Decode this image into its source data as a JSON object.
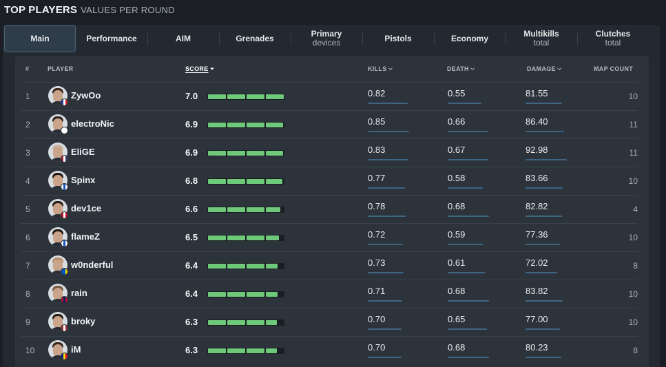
{
  "header": {
    "title": "TOP PLAYERS",
    "subtitle": "VALUES PER ROUND"
  },
  "tabs": [
    {
      "label": "Main",
      "sub": ""
    },
    {
      "label": "Performance",
      "sub": ""
    },
    {
      "label": "AIM",
      "sub": ""
    },
    {
      "label": "Grenades",
      "sub": ""
    },
    {
      "label": "Primary",
      "sub": "devices"
    },
    {
      "label": "Pistols",
      "sub": ""
    },
    {
      "label": "Economy",
      "sub": ""
    },
    {
      "label": "Multikills",
      "sub": "total"
    },
    {
      "label": "Clutches",
      "sub": "total"
    }
  ],
  "active_tab": "Main",
  "columns": {
    "num": "#",
    "player": "PLAYER",
    "score": "SCORE",
    "kills": "KILLS",
    "death": "DEATH",
    "damage": "DAMAGE",
    "maps": "MAP COUNT"
  },
  "sort": {
    "column": "score",
    "direction": "desc"
  },
  "score_max": 7.0,
  "colors": {
    "accent": "#6fc97a",
    "stat_line": "#3f6585",
    "active_tab": "#2f3d4a"
  },
  "players": [
    {
      "rank": "1",
      "name": "ZywOo",
      "score": "7.0",
      "kills": "0.82",
      "death": "0.55",
      "damage": "81.55",
      "maps": "10",
      "flag": [
        "#1f3fa0",
        "#ffffff",
        "#d62828"
      ],
      "hair": "#3b2a22"
    },
    {
      "rank": "2",
      "name": "electroNic",
      "score": "6.9",
      "kills": "0.85",
      "death": "0.66",
      "damage": "86.40",
      "maps": "11",
      "flag": [
        "#ffffff",
        "#ffffff",
        "#ffffff"
      ],
      "hair": "#2f2520"
    },
    {
      "rank": "3",
      "name": "EliGE",
      "score": "6.9",
      "kills": "0.83",
      "death": "0.67",
      "damage": "92.98",
      "maps": "11",
      "flag": [
        "#b22234",
        "#ffffff",
        "#3c3b6e"
      ],
      "hair": "#c9b8a8"
    },
    {
      "rank": "4",
      "name": "Spinx",
      "score": "6.8",
      "kills": "0.77",
      "death": "0.58",
      "damage": "83.66",
      "maps": "10",
      "flag": [
        "#ffffff",
        "#1c4fbf",
        "#ffffff"
      ],
      "hair": "#241b17"
    },
    {
      "rank": "5",
      "name": "dev1ce",
      "score": "6.6",
      "kills": "0.78",
      "death": "0.68",
      "damage": "82.82",
      "maps": "4",
      "flag": [
        "#c8102e",
        "#ffffff",
        "#c8102e"
      ],
      "hair": "#2a1f1a"
    },
    {
      "rank": "6",
      "name": "flameZ",
      "score": "6.5",
      "kills": "0.72",
      "death": "0.59",
      "damage": "77.36",
      "maps": "10",
      "flag": [
        "#ffffff",
        "#1c4fbf",
        "#ffffff"
      ],
      "hair": "#1f1a17"
    },
    {
      "rank": "7",
      "name": "w0nderful",
      "score": "6.4",
      "kills": "0.73",
      "death": "0.61",
      "damage": "72.02",
      "maps": "8",
      "flag": [
        "#0057b7",
        "#0057b7",
        "#ffd700"
      ],
      "hair": "#b88f6a"
    },
    {
      "rank": "8",
      "name": "rain",
      "score": "6.4",
      "kills": "0.71",
      "death": "0.68",
      "damage": "83.82",
      "maps": "10",
      "flag": [
        "#ba0c2f",
        "#00205b",
        "#ba0c2f"
      ],
      "hair": "#7a5a40"
    },
    {
      "rank": "9",
      "name": "broky",
      "score": "6.3",
      "kills": "0.70",
      "death": "0.65",
      "damage": "77.00",
      "maps": "10",
      "flag": [
        "#9e3039",
        "#ffffff",
        "#9e3039"
      ],
      "hair": "#2a2019"
    },
    {
      "rank": "10",
      "name": "iM",
      "score": "6.3",
      "kills": "0.70",
      "death": "0.68",
      "damage": "80.23",
      "maps": "8",
      "flag": [
        "#002b7f",
        "#fcd116",
        "#ce1126"
      ],
      "hair": "#3a2a20"
    }
  ]
}
